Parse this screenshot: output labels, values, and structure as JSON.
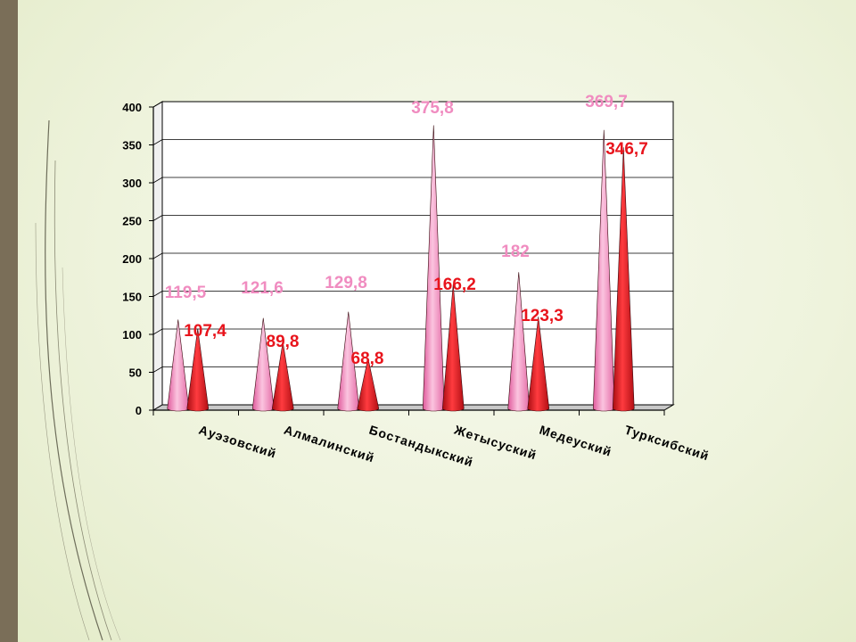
{
  "chart_data": {
    "type": "bar",
    "style": "3d-cone",
    "categories": [
      "Ауэзовский",
      "Алмалинский",
      "Бостандыкский",
      "Жетысуский",
      "Медеуский",
      "Турксибский"
    ],
    "series": [
      {
        "color": "#f49ac8",
        "label_color": "#f08cc0",
        "values": [
          119.5,
          121.6,
          129.8,
          375.8,
          182,
          369.7
        ],
        "labels": [
          "119,5",
          "121,6",
          "129,8",
          "375,8",
          "182",
          "369,7"
        ]
      },
      {
        "color": "#e8191f",
        "label_color": "#e8141c",
        "values": [
          107.4,
          89.8,
          68.8,
          166.2,
          123.3,
          346.7
        ],
        "labels": [
          "107,4",
          "89,8",
          "68,8",
          "166,2",
          "123,3",
          "346,7"
        ]
      }
    ],
    "yticks": [
      "0",
      "50",
      "100",
      "150",
      "200",
      "250",
      "300",
      "350",
      "400"
    ],
    "ylim": [
      0,
      400
    ],
    "grid": true,
    "legend": "none"
  }
}
